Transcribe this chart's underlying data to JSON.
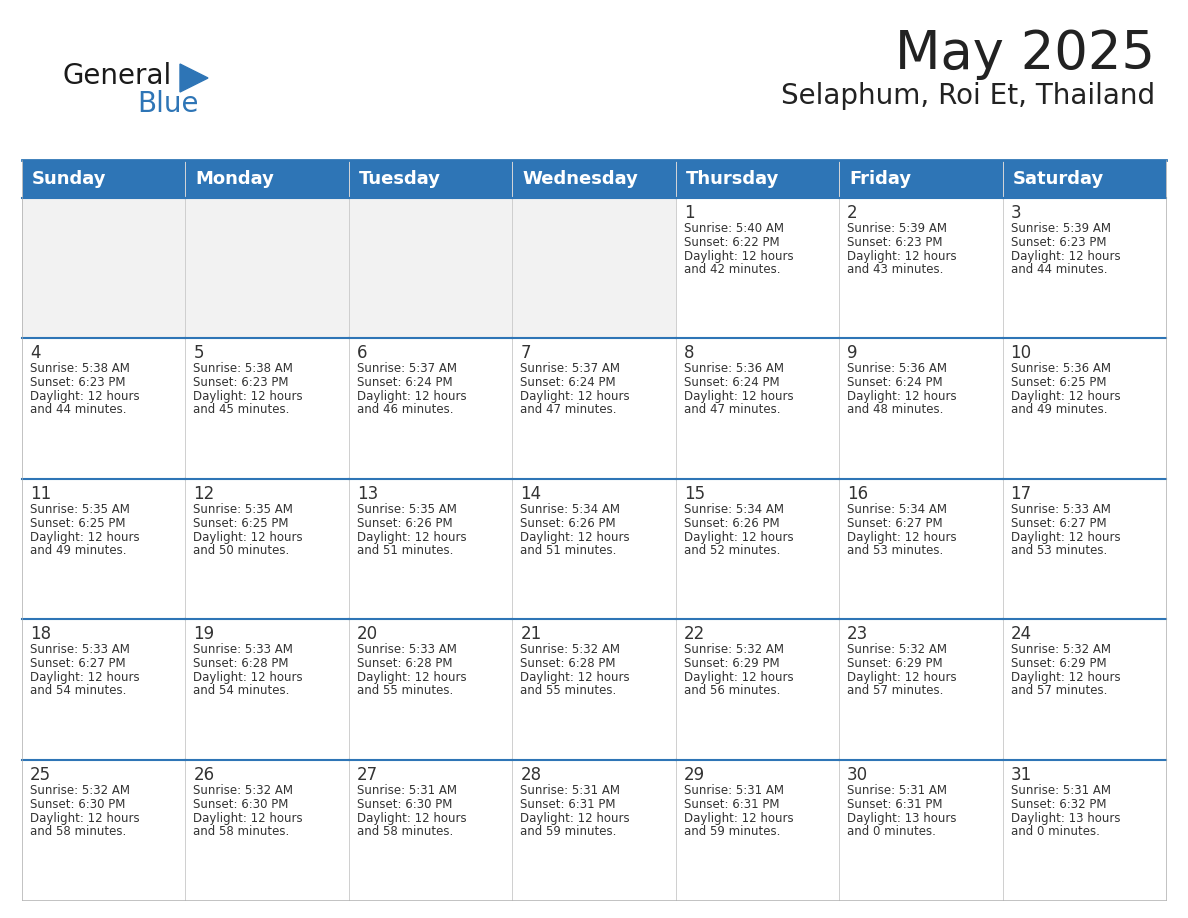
{
  "title": "May 2025",
  "subtitle": "Selaphum, Roi Et, Thailand",
  "days_of_week": [
    "Sunday",
    "Monday",
    "Tuesday",
    "Wednesday",
    "Thursday",
    "Friday",
    "Saturday"
  ],
  "header_bg": "#2e75b6",
  "header_text": "#ffffff",
  "cell_bg_light": "#f2f2f2",
  "cell_bg_white": "#ffffff",
  "border_color": "#2e75b6",
  "text_color": "#333333",
  "title_color": "#222222",
  "calendar_data": [
    [
      null,
      null,
      null,
      null,
      {
        "day": 1,
        "sunrise": "5:40 AM",
        "sunset": "6:22 PM",
        "daylight": "12 hours and 42 minutes"
      },
      {
        "day": 2,
        "sunrise": "5:39 AM",
        "sunset": "6:23 PM",
        "daylight": "12 hours and 43 minutes"
      },
      {
        "day": 3,
        "sunrise": "5:39 AM",
        "sunset": "6:23 PM",
        "daylight": "12 hours and 44 minutes"
      }
    ],
    [
      {
        "day": 4,
        "sunrise": "5:38 AM",
        "sunset": "6:23 PM",
        "daylight": "12 hours and 44 minutes"
      },
      {
        "day": 5,
        "sunrise": "5:38 AM",
        "sunset": "6:23 PM",
        "daylight": "12 hours and 45 minutes"
      },
      {
        "day": 6,
        "sunrise": "5:37 AM",
        "sunset": "6:24 PM",
        "daylight": "12 hours and 46 minutes"
      },
      {
        "day": 7,
        "sunrise": "5:37 AM",
        "sunset": "6:24 PM",
        "daylight": "12 hours and 47 minutes"
      },
      {
        "day": 8,
        "sunrise": "5:36 AM",
        "sunset": "6:24 PM",
        "daylight": "12 hours and 47 minutes"
      },
      {
        "day": 9,
        "sunrise": "5:36 AM",
        "sunset": "6:24 PM",
        "daylight": "12 hours and 48 minutes"
      },
      {
        "day": 10,
        "sunrise": "5:36 AM",
        "sunset": "6:25 PM",
        "daylight": "12 hours and 49 minutes"
      }
    ],
    [
      {
        "day": 11,
        "sunrise": "5:35 AM",
        "sunset": "6:25 PM",
        "daylight": "12 hours and 49 minutes"
      },
      {
        "day": 12,
        "sunrise": "5:35 AM",
        "sunset": "6:25 PM",
        "daylight": "12 hours and 50 minutes"
      },
      {
        "day": 13,
        "sunrise": "5:35 AM",
        "sunset": "6:26 PM",
        "daylight": "12 hours and 51 minutes"
      },
      {
        "day": 14,
        "sunrise": "5:34 AM",
        "sunset": "6:26 PM",
        "daylight": "12 hours and 51 minutes"
      },
      {
        "day": 15,
        "sunrise": "5:34 AM",
        "sunset": "6:26 PM",
        "daylight": "12 hours and 52 minutes"
      },
      {
        "day": 16,
        "sunrise": "5:34 AM",
        "sunset": "6:27 PM",
        "daylight": "12 hours and 53 minutes"
      },
      {
        "day": 17,
        "sunrise": "5:33 AM",
        "sunset": "6:27 PM",
        "daylight": "12 hours and 53 minutes"
      }
    ],
    [
      {
        "day": 18,
        "sunrise": "5:33 AM",
        "sunset": "6:27 PM",
        "daylight": "12 hours and 54 minutes"
      },
      {
        "day": 19,
        "sunrise": "5:33 AM",
        "sunset": "6:28 PM",
        "daylight": "12 hours and 54 minutes"
      },
      {
        "day": 20,
        "sunrise": "5:33 AM",
        "sunset": "6:28 PM",
        "daylight": "12 hours and 55 minutes"
      },
      {
        "day": 21,
        "sunrise": "5:32 AM",
        "sunset": "6:28 PM",
        "daylight": "12 hours and 55 minutes"
      },
      {
        "day": 22,
        "sunrise": "5:32 AM",
        "sunset": "6:29 PM",
        "daylight": "12 hours and 56 minutes"
      },
      {
        "day": 23,
        "sunrise": "5:32 AM",
        "sunset": "6:29 PM",
        "daylight": "12 hours and 57 minutes"
      },
      {
        "day": 24,
        "sunrise": "5:32 AM",
        "sunset": "6:29 PM",
        "daylight": "12 hours and 57 minutes"
      }
    ],
    [
      {
        "day": 25,
        "sunrise": "5:32 AM",
        "sunset": "6:30 PM",
        "daylight": "12 hours and 58 minutes"
      },
      {
        "day": 26,
        "sunrise": "5:32 AM",
        "sunset": "6:30 PM",
        "daylight": "12 hours and 58 minutes"
      },
      {
        "day": 27,
        "sunrise": "5:31 AM",
        "sunset": "6:30 PM",
        "daylight": "12 hours and 58 minutes"
      },
      {
        "day": 28,
        "sunrise": "5:31 AM",
        "sunset": "6:31 PM",
        "daylight": "12 hours and 59 minutes"
      },
      {
        "day": 29,
        "sunrise": "5:31 AM",
        "sunset": "6:31 PM",
        "daylight": "12 hours and 59 minutes"
      },
      {
        "day": 30,
        "sunrise": "5:31 AM",
        "sunset": "6:31 PM",
        "daylight": "13 hours and 0 minutes"
      },
      {
        "day": 31,
        "sunrise": "5:31 AM",
        "sunset": "6:32 PM",
        "daylight": "13 hours and 0 minutes"
      }
    ]
  ],
  "logo_text_general": "General",
  "logo_text_blue": "Blue",
  "generalblue_color": "#1a1a1a",
  "blue_color": "#2e75b6"
}
